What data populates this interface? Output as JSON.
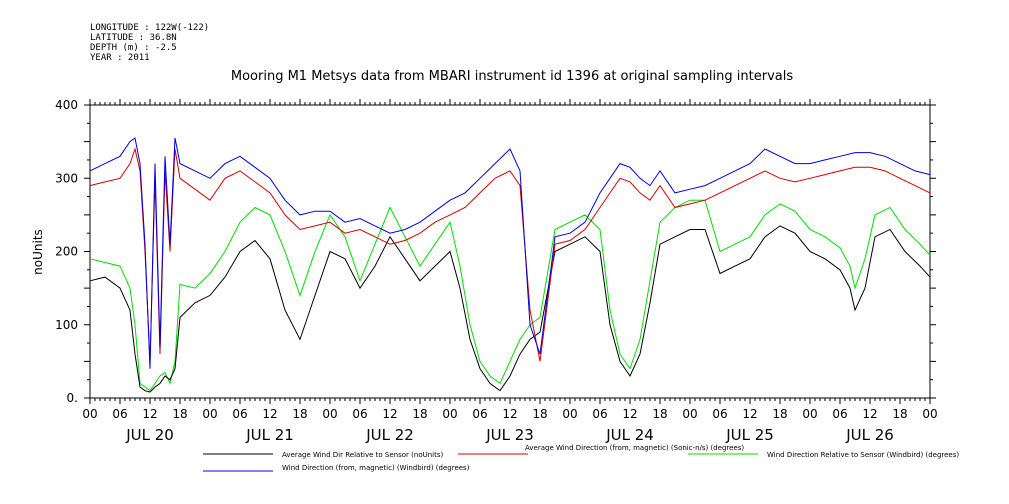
{
  "header": {
    "lines": [
      "LONGITUDE : 122W(-122)",
      "LATITUDE : 36.8N",
      "DEPTH (m) : -2.5",
      "YEAR : 2011"
    ]
  },
  "chart_data": {
    "type": "line",
    "title": "Mooring M1 Metsys data from MBARI instrument id 1396 at original sampling intervals",
    "ylabel": "noUnits",
    "ylim": [
      0,
      400
    ],
    "yticks": [
      0,
      100,
      200,
      300,
      400
    ],
    "ytick_labels": [
      "0.",
      "100",
      "200",
      "300",
      "400"
    ],
    "x_hour_labels": [
      "00",
      "06",
      "12",
      "18",
      "00",
      "06",
      "12",
      "18",
      "00",
      "06",
      "12",
      "18",
      "00",
      "06",
      "12",
      "18",
      "00",
      "06",
      "12",
      "18",
      "00",
      "06",
      "12",
      "18",
      "00",
      "06",
      "12",
      "18",
      "00"
    ],
    "x_day_labels": [
      "JUL 20",
      "JUL 21",
      "JUL 22",
      "JUL 23",
      "JUL 24",
      "JUL 25",
      "JUL 26"
    ],
    "x_range_hours": [
      0,
      168
    ],
    "series": [
      {
        "name": "Average Wind Dir Relative to Sensor (noUnits)",
        "color": "#000000",
        "points": [
          [
            0,
            160
          ],
          [
            3,
            165
          ],
          [
            6,
            150
          ],
          [
            8,
            120
          ],
          [
            9,
            60
          ],
          [
            10,
            15
          ],
          [
            11,
            10
          ],
          [
            12,
            8
          ],
          [
            13,
            15
          ],
          [
            14,
            20
          ],
          [
            15,
            30
          ],
          [
            16,
            25
          ],
          [
            17,
            40
          ],
          [
            18,
            110
          ],
          [
            21,
            130
          ],
          [
            24,
            140
          ],
          [
            27,
            165
          ],
          [
            30,
            200
          ],
          [
            33,
            215
          ],
          [
            36,
            190
          ],
          [
            39,
            120
          ],
          [
            42,
            80
          ],
          [
            45,
            140
          ],
          [
            48,
            200
          ],
          [
            51,
            190
          ],
          [
            54,
            150
          ],
          [
            57,
            180
          ],
          [
            60,
            220
          ],
          [
            63,
            190
          ],
          [
            66,
            160
          ],
          [
            69,
            180
          ],
          [
            72,
            200
          ],
          [
            74,
            150
          ],
          [
            76,
            80
          ],
          [
            78,
            40
          ],
          [
            80,
            20
          ],
          [
            82,
            10
          ],
          [
            84,
            30
          ],
          [
            86,
            60
          ],
          [
            88,
            80
          ],
          [
            90,
            90
          ],
          [
            93,
            200
          ],
          [
            96,
            210
          ],
          [
            99,
            220
          ],
          [
            102,
            200
          ],
          [
            104,
            100
          ],
          [
            106,
            50
          ],
          [
            108,
            30
          ],
          [
            110,
            60
          ],
          [
            112,
            130
          ],
          [
            114,
            210
          ],
          [
            117,
            220
          ],
          [
            120,
            230
          ],
          [
            123,
            230
          ],
          [
            126,
            170
          ],
          [
            129,
            180
          ],
          [
            132,
            190
          ],
          [
            135,
            220
          ],
          [
            138,
            235
          ],
          [
            141,
            225
          ],
          [
            144,
            200
          ],
          [
            147,
            190
          ],
          [
            150,
            175
          ],
          [
            152,
            150
          ],
          [
            153,
            120
          ],
          [
            155,
            150
          ],
          [
            157,
            220
          ],
          [
            160,
            230
          ],
          [
            163,
            200
          ],
          [
            166,
            180
          ],
          [
            168,
            165
          ]
        ]
      },
      {
        "name": "Average Wind Direction (from, magnetic) (Sonic-n/s) (degrees)",
        "color": "#d40000",
        "points": [
          [
            0,
            290
          ],
          [
            3,
            295
          ],
          [
            6,
            300
          ],
          [
            8,
            320
          ],
          [
            9,
            340
          ],
          [
            10,
            310
          ],
          [
            11,
            200
          ],
          [
            12,
            50
          ],
          [
            13,
            300
          ],
          [
            14,
            60
          ],
          [
            15,
            310
          ],
          [
            16,
            200
          ],
          [
            17,
            340
          ],
          [
            18,
            300
          ],
          [
            21,
            285
          ],
          [
            24,
            270
          ],
          [
            27,
            300
          ],
          [
            30,
            310
          ],
          [
            33,
            295
          ],
          [
            36,
            280
          ],
          [
            39,
            250
          ],
          [
            42,
            230
          ],
          [
            45,
            235
          ],
          [
            48,
            240
          ],
          [
            51,
            225
          ],
          [
            54,
            230
          ],
          [
            57,
            220
          ],
          [
            60,
            210
          ],
          [
            63,
            215
          ],
          [
            66,
            225
          ],
          [
            69,
            240
          ],
          [
            72,
            250
          ],
          [
            75,
            260
          ],
          [
            78,
            280
          ],
          [
            81,
            300
          ],
          [
            84,
            310
          ],
          [
            86,
            290
          ],
          [
            88,
            120
          ],
          [
            90,
            50
          ],
          [
            93,
            210
          ],
          [
            96,
            215
          ],
          [
            99,
            230
          ],
          [
            102,
            260
          ],
          [
            104,
            280
          ],
          [
            106,
            300
          ],
          [
            108,
            295
          ],
          [
            110,
            280
          ],
          [
            112,
            270
          ],
          [
            114,
            290
          ],
          [
            117,
            260
          ],
          [
            120,
            265
          ],
          [
            123,
            270
          ],
          [
            126,
            280
          ],
          [
            129,
            290
          ],
          [
            132,
            300
          ],
          [
            135,
            310
          ],
          [
            138,
            300
          ],
          [
            141,
            295
          ],
          [
            144,
            300
          ],
          [
            147,
            305
          ],
          [
            150,
            310
          ],
          [
            153,
            315
          ],
          [
            156,
            315
          ],
          [
            159,
            310
          ],
          [
            162,
            300
          ],
          [
            165,
            290
          ],
          [
            168,
            280
          ]
        ]
      },
      {
        "name": "Wind Direction Relative to Sensor (Windbird) (degrees)",
        "color": "#00dd00",
        "points": [
          [
            0,
            190
          ],
          [
            3,
            185
          ],
          [
            6,
            180
          ],
          [
            8,
            150
          ],
          [
            9,
            100
          ],
          [
            10,
            20
          ],
          [
            11,
            15
          ],
          [
            12,
            10
          ],
          [
            13,
            20
          ],
          [
            14,
            30
          ],
          [
            15,
            35
          ],
          [
            16,
            20
          ],
          [
            17,
            50
          ],
          [
            18,
            155
          ],
          [
            21,
            150
          ],
          [
            24,
            170
          ],
          [
            27,
            200
          ],
          [
            30,
            240
          ],
          [
            33,
            260
          ],
          [
            36,
            250
          ],
          [
            39,
            200
          ],
          [
            42,
            140
          ],
          [
            45,
            200
          ],
          [
            48,
            250
          ],
          [
            51,
            220
          ],
          [
            54,
            160
          ],
          [
            57,
            210
          ],
          [
            60,
            260
          ],
          [
            63,
            220
          ],
          [
            66,
            180
          ],
          [
            69,
            210
          ],
          [
            72,
            240
          ],
          [
            74,
            180
          ],
          [
            76,
            100
          ],
          [
            78,
            50
          ],
          [
            80,
            30
          ],
          [
            82,
            20
          ],
          [
            84,
            50
          ],
          [
            86,
            80
          ],
          [
            88,
            100
          ],
          [
            90,
            110
          ],
          [
            93,
            230
          ],
          [
            96,
            240
          ],
          [
            99,
            250
          ],
          [
            102,
            230
          ],
          [
            104,
            120
          ],
          [
            106,
            60
          ],
          [
            108,
            40
          ],
          [
            110,
            80
          ],
          [
            112,
            160
          ],
          [
            114,
            240
          ],
          [
            117,
            260
          ],
          [
            120,
            270
          ],
          [
            123,
            270
          ],
          [
            126,
            200
          ],
          [
            129,
            210
          ],
          [
            132,
            220
          ],
          [
            135,
            250
          ],
          [
            138,
            265
          ],
          [
            141,
            255
          ],
          [
            144,
            230
          ],
          [
            147,
            220
          ],
          [
            150,
            205
          ],
          [
            152,
            180
          ],
          [
            153,
            150
          ],
          [
            155,
            190
          ],
          [
            157,
            250
          ],
          [
            160,
            260
          ],
          [
            163,
            230
          ],
          [
            166,
            210
          ],
          [
            168,
            195
          ]
        ]
      },
      {
        "name": "Wind Direction (from, magnetic) (Windbird) (degrees)",
        "color": "#0000dd",
        "points": [
          [
            0,
            310
          ],
          [
            3,
            320
          ],
          [
            6,
            330
          ],
          [
            8,
            350
          ],
          [
            9,
            355
          ],
          [
            10,
            320
          ],
          [
            11,
            210
          ],
          [
            12,
            40
          ],
          [
            13,
            320
          ],
          [
            14,
            70
          ],
          [
            15,
            330
          ],
          [
            16,
            210
          ],
          [
            17,
            355
          ],
          [
            18,
            320
          ],
          [
            21,
            310
          ],
          [
            24,
            300
          ],
          [
            27,
            320
          ],
          [
            30,
            330
          ],
          [
            33,
            315
          ],
          [
            36,
            300
          ],
          [
            39,
            270
          ],
          [
            42,
            250
          ],
          [
            45,
            255
          ],
          [
            48,
            255
          ],
          [
            51,
            240
          ],
          [
            54,
            245
          ],
          [
            57,
            235
          ],
          [
            60,
            225
          ],
          [
            63,
            230
          ],
          [
            66,
            240
          ],
          [
            69,
            255
          ],
          [
            72,
            270
          ],
          [
            75,
            280
          ],
          [
            78,
            300
          ],
          [
            81,
            320
          ],
          [
            84,
            340
          ],
          [
            86,
            310
          ],
          [
            88,
            100
          ],
          [
            90,
            60
          ],
          [
            93,
            220
          ],
          [
            96,
            225
          ],
          [
            99,
            240
          ],
          [
            102,
            280
          ],
          [
            104,
            300
          ],
          [
            106,
            320
          ],
          [
            108,
            315
          ],
          [
            110,
            300
          ],
          [
            112,
            290
          ],
          [
            114,
            310
          ],
          [
            117,
            280
          ],
          [
            120,
            285
          ],
          [
            123,
            290
          ],
          [
            126,
            300
          ],
          [
            129,
            310
          ],
          [
            132,
            320
          ],
          [
            135,
            340
          ],
          [
            138,
            330
          ],
          [
            141,
            320
          ],
          [
            144,
            320
          ],
          [
            147,
            325
          ],
          [
            150,
            330
          ],
          [
            153,
            335
          ],
          [
            156,
            335
          ],
          [
            159,
            330
          ],
          [
            162,
            320
          ],
          [
            165,
            310
          ],
          [
            168,
            305
          ]
        ]
      }
    ],
    "legend_placement": "bottom"
  }
}
